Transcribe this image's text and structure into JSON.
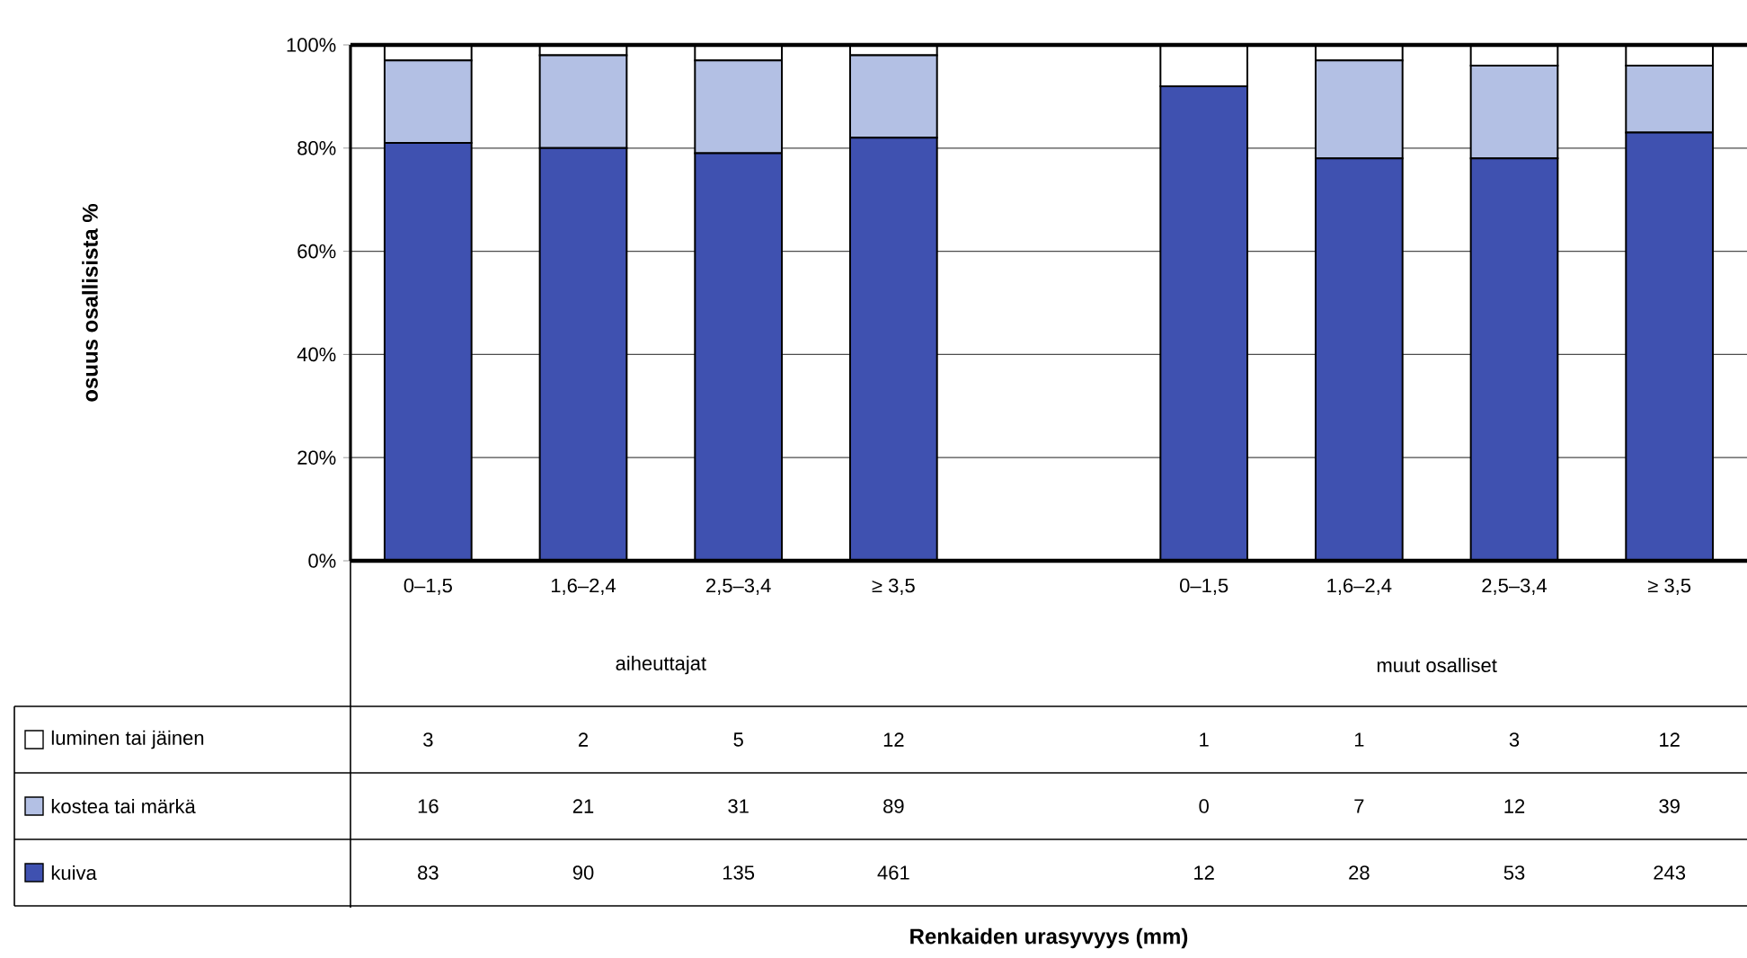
{
  "chart_data": [
    {
      "type": "bar",
      "stacked": true,
      "xlabel": "Renkaiden urasyvyys (mm)",
      "ylabel": "osuus osallisista %",
      "categories": [
        "0–1,5",
        "1,6–2,4",
        "2,5–3,4",
        "≥ 3,5",
        null,
        "0–1,5",
        "1,6–2,4",
        "2,5–3,4",
        "≥ 3,5"
      ],
      "series": [
        {
          "color": "#3f51b0",
          "values": [
            81,
            80,
            79,
            82,
            null,
            92,
            78,
            78,
            83
          ]
        },
        {
          "color": "#b3c0e4",
          "values": [
            16,
            18,
            18,
            16,
            null,
            0,
            19,
            18,
            13
          ]
        },
        {
          "color": "#ffffff",
          "values": [
            3,
            2,
            3,
            2,
            null,
            8,
            3,
            4,
            4
          ]
        }
      ],
      "annotations": [
        "aiheuttajat",
        "muut osalliset"
      ],
      "ylim": [
        0,
        100
      ],
      "yticks": [
        {
          "value": 0,
          "label": "0%"
        },
        {
          "value": 20,
          "label": "20%"
        },
        {
          "value": 40,
          "label": "40%"
        },
        {
          "value": 60,
          "label": "60%"
        },
        {
          "value": 80,
          "label": "80%"
        },
        {
          "value": 100,
          "label": "100%"
        }
      ],
      "grid": "y"
    },
    {
      "type": "other",
      "legend": "left",
      "series": [
        {
          "name": "kuiva",
          "color": "#3f51b0"
        },
        {
          "name": "kostea tai märkä",
          "color": "#b3c0e4"
        },
        {
          "name": "luminen tai jäinen",
          "color": "#ffffff"
        }
      ],
      "annotations": [
        "3",
        "2",
        "5",
        "12",
        "1",
        "1",
        "3",
        "12",
        "16",
        "21",
        "31",
        "89",
        "0",
        "7",
        "12",
        "39",
        "83",
        "90",
        "135",
        "461",
        "12",
        "28",
        "53",
        "243"
      ]
    }
  ]
}
